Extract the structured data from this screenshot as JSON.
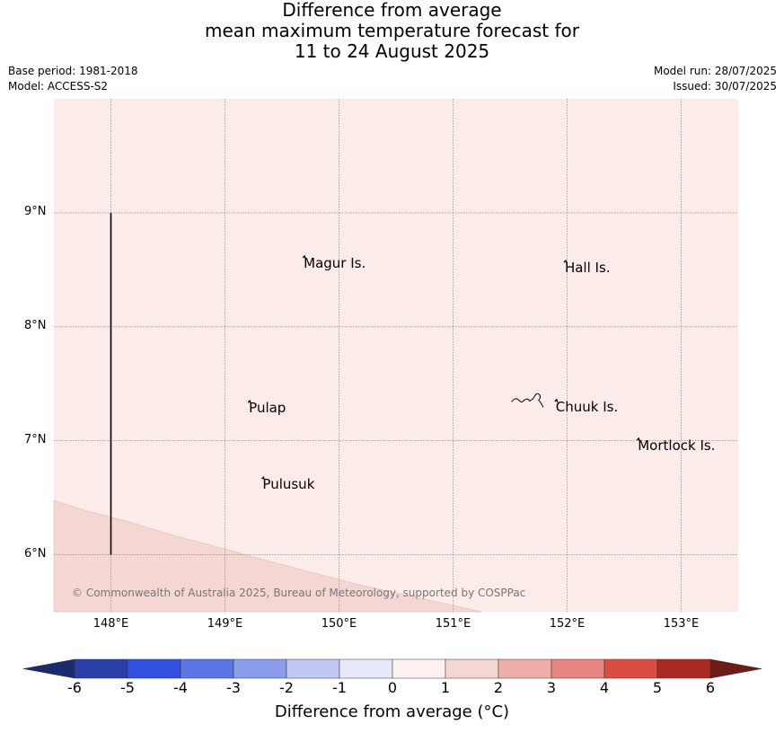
{
  "title": {
    "line1": "Difference from average",
    "line2": "mean maximum temperature forecast for",
    "line3": "11 to 24 August 2025"
  },
  "meta": {
    "base_period": "Base period: 1981-2018",
    "model": "Model: ACCESS-S2",
    "model_run": "Model run: 28/07/2025",
    "issued": "Issued: 30/07/2025"
  },
  "map": {
    "extent": {
      "lon": [
        147.5,
        153.5
      ],
      "lat": [
        5.5,
        10.0
      ]
    },
    "lon_ticks": [
      {
        "value": 148,
        "label": "148°E"
      },
      {
        "value": 149,
        "label": "149°E"
      },
      {
        "value": 150,
        "label": "150°E"
      },
      {
        "value": 151,
        "label": "151°E"
      },
      {
        "value": 152,
        "label": "152°E"
      },
      {
        "value": 153,
        "label": "153°E"
      }
    ],
    "lat_ticks": [
      {
        "value": 9,
        "label": "9°N"
      },
      {
        "value": 8,
        "label": "8°N"
      },
      {
        "value": 7,
        "label": "7°N"
      },
      {
        "value": 6,
        "label": "6°N"
      }
    ],
    "background_category": "0 to 1",
    "background_color": "#fbebe9",
    "region_category": "1 to 2",
    "region_color": "#f4d6d3",
    "boundary_line": {
      "lon": 148.0,
      "lat": [
        6.0,
        9.0
      ]
    },
    "places": [
      {
        "name": "Magur Is.",
        "lon": 149.69,
        "lat": 8.55
      },
      {
        "name": "Hall Is.",
        "lon": 151.98,
        "lat": 8.51
      },
      {
        "name": "Pulap",
        "lon": 149.21,
        "lat": 7.28
      },
      {
        "name": "Chuuk Is.",
        "lon": 151.9,
        "lat": 7.29
      },
      {
        "name": "Mortlock Is.",
        "lon": 152.62,
        "lat": 6.95
      },
      {
        "name": "Pulusuk",
        "lon": 149.33,
        "lat": 6.61
      }
    ],
    "copyright": "© Commonwealth of Australia 2025, Bureau of Meteorology, supported by COSPPac"
  },
  "colorbar": {
    "title": "Difference from average (°C)",
    "labels": [
      "-6",
      "-5",
      "-4",
      "-3",
      "-2",
      "-1",
      "0",
      "1",
      "2",
      "3",
      "4",
      "5",
      "6"
    ],
    "colors": [
      "#283ea8",
      "#3150e0",
      "#5b75e4",
      "#8a9cec",
      "#c0c8f3",
      "#e6e9fa",
      "#fdf1f0",
      "#f4d6d3",
      "#efadaa",
      "#e88580",
      "#db4d40",
      "#aa2a22"
    ],
    "extend_low": "#1c2a6e",
    "extend_high": "#6e1c16"
  }
}
